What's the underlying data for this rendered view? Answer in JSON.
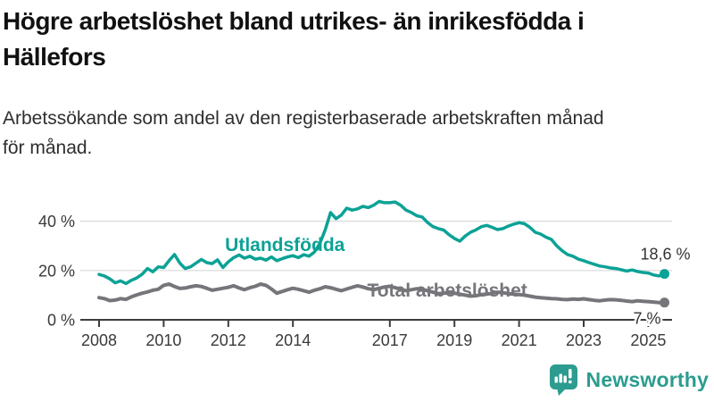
{
  "header": {
    "title": "Högre arbetslöshet bland utrikes- än inrikesfödda i Hällefors",
    "title_lines": [
      "Högre arbetslöshet bland utrikes- än inrikesfödda i",
      "Hällefors"
    ],
    "subtitle_lines": [
      "Arbetssökande som andel av den registerbaserade arbetskraften månad",
      "för månad."
    ]
  },
  "chart_data": {
    "type": "line",
    "title": "Högre arbetslöshet bland utrikes- än inrikesfödda i Hällefors",
    "xlabel": "",
    "ylabel": "Arbetssökande som andel av den registerbaserade arbetskraften",
    "x_start": 2008.0,
    "x_step_years": 0.1666667,
    "xlim": [
      2007.4,
      2026.0
    ],
    "ylim": [
      0,
      50
    ],
    "grid": true,
    "x_ticks": [
      {
        "year": 2008,
        "label": "2008"
      },
      {
        "year": 2010,
        "label": "2010"
      },
      {
        "year": 2012,
        "label": "2012"
      },
      {
        "year": 2014,
        "label": "2014"
      },
      {
        "year": 2017,
        "label": "2017"
      },
      {
        "year": 2019,
        "label": "2019"
      },
      {
        "year": 2021,
        "label": "2021"
      },
      {
        "year": 2023,
        "label": "2023"
      },
      {
        "year": 2025,
        "label": "2025"
      }
    ],
    "y_ticks": [
      {
        "value": 0,
        "label": "0 %"
      },
      {
        "value": 20,
        "label": "20 %"
      },
      {
        "value": 40,
        "label": "40 %"
      }
    ],
    "colors": {
      "axis": "#3d3d3d",
      "grid": "#d9d9d9",
      "tick_text": "#3a3a3a",
      "end_label_text": "#333333"
    },
    "series": [
      {
        "name": "Utlandsfödda",
        "color": "#0ca296",
        "stroke_width": 3.5,
        "end_label": "18,6 %",
        "end_value": 18.6,
        "end_label_placement": "above",
        "label_pos": {
          "year": 2011.9,
          "value": 27.9
        },
        "values": [
          18.4,
          17.8,
          16.6,
          15.0,
          15.8,
          14.7,
          16.0,
          17.0,
          18.5,
          20.8,
          19.5,
          21.5,
          21.2,
          24.0,
          26.5,
          23.0,
          20.8,
          21.5,
          23.0,
          24.5,
          23.2,
          22.8,
          24.3,
          21.2,
          23.5,
          25.2,
          26.3,
          25.0,
          25.8,
          24.6,
          25.0,
          24.2,
          25.5,
          24.0,
          24.8,
          25.5,
          26.0,
          25.2,
          26.4,
          25.8,
          27.5,
          31.0,
          36.5,
          43.5,
          41.0,
          42.5,
          45.3,
          44.5,
          45.0,
          46.0,
          45.5,
          46.5,
          48.0,
          47.5,
          47.5,
          47.8,
          46.5,
          44.5,
          43.5,
          42.2,
          41.7,
          39.5,
          37.8,
          37.0,
          36.4,
          34.5,
          33.0,
          31.9,
          34.0,
          35.5,
          36.5,
          37.8,
          38.3,
          37.5,
          36.6,
          37.0,
          38.0,
          38.8,
          39.4,
          39.0,
          37.5,
          35.5,
          34.8,
          33.5,
          32.6,
          30.0,
          28.0,
          26.5,
          25.8,
          24.6,
          24.0,
          23.2,
          22.5,
          21.8,
          21.5,
          21.0,
          20.8,
          20.3,
          19.8,
          20.2,
          19.6,
          19.2,
          19.0,
          18.2,
          17.8,
          18.6
        ]
      },
      {
        "name": "Total arbetslöshet",
        "color": "#76757a",
        "stroke_width": 4,
        "end_label": "7 %",
        "end_value": 7.0,
        "end_label_placement": "below",
        "label_pos": {
          "year": 2016.3,
          "value": 9.4
        },
        "values": [
          9.0,
          8.6,
          7.8,
          8.0,
          8.6,
          8.3,
          9.3,
          10.1,
          10.8,
          11.3,
          12.0,
          12.4,
          14.0,
          14.5,
          13.5,
          12.7,
          12.9,
          13.4,
          13.8,
          13.5,
          12.8,
          12.0,
          12.4,
          12.8,
          13.2,
          13.8,
          12.9,
          12.2,
          13.0,
          13.6,
          14.5,
          14.0,
          12.5,
          10.8,
          11.5,
          12.2,
          12.8,
          12.4,
          11.8,
          11.2,
          12.0,
          12.6,
          13.4,
          13.0,
          12.4,
          11.8,
          12.5,
          13.2,
          13.8,
          13.3,
          12.6,
          12.2,
          12.8,
          13.3,
          13.6,
          13.0,
          12.4,
          11.8,
          12.2,
          12.6,
          12.4,
          11.8,
          11.2,
          10.6,
          10.8,
          11.0,
          10.8,
          10.4,
          10.0,
          9.6,
          9.8,
          10.2,
          10.4,
          10.8,
          11.2,
          11.0,
          10.6,
          10.4,
          10.2,
          10.0,
          9.6,
          9.2,
          9.0,
          8.8,
          8.6,
          8.5,
          8.3,
          8.2,
          8.4,
          8.3,
          8.5,
          8.2,
          7.9,
          7.7,
          8.0,
          8.2,
          8.1,
          7.9,
          7.6,
          7.4,
          7.7,
          7.5,
          7.4,
          7.2,
          7.0,
          7.0
        ]
      }
    ]
  },
  "footer": {
    "brand": "Newsworthy",
    "brand_color": "#2c9c90"
  }
}
